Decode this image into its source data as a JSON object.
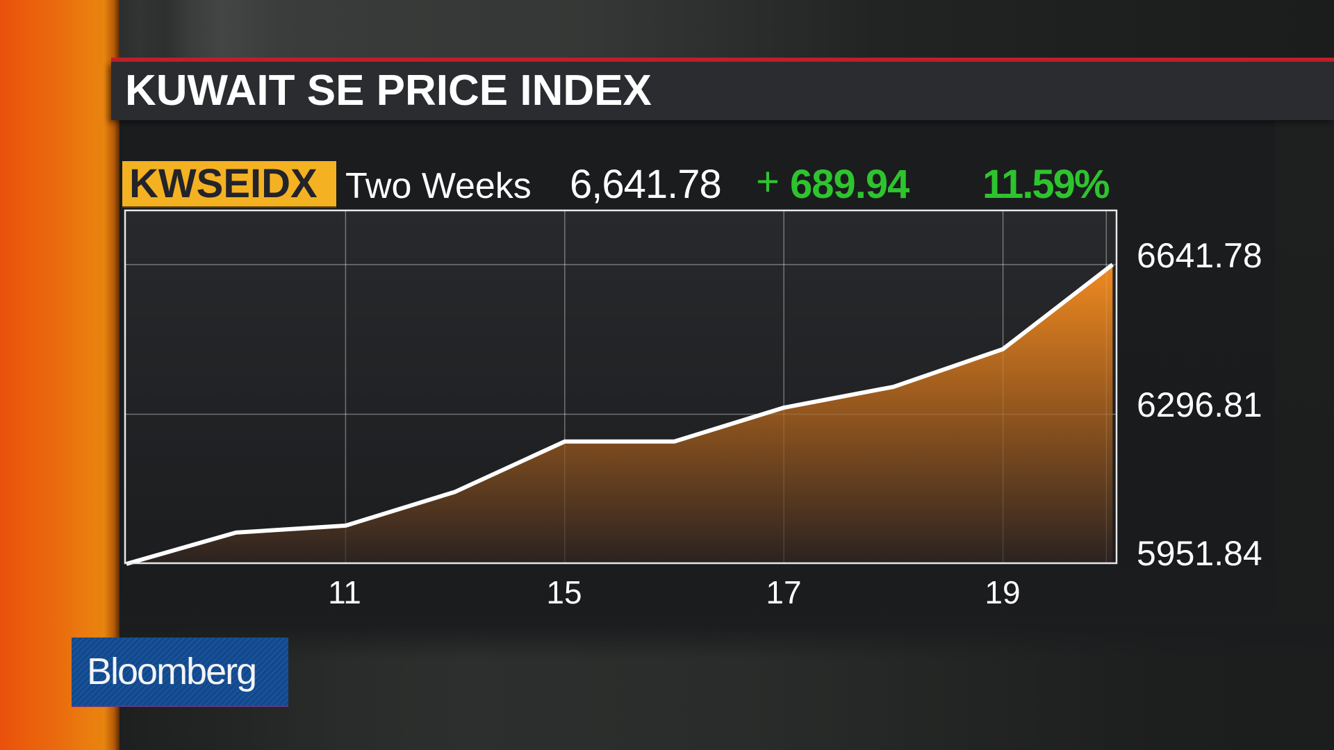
{
  "title": "KUWAIT SE PRICE INDEX",
  "ticker": "KWSEIDX",
  "period": "Two Weeks",
  "last_price": "6,641.78",
  "change_sign": "+",
  "change_value": "689.94",
  "change_pct": "11.59%",
  "brand": "Bloomberg",
  "colors": {
    "accent_orange": "#e9780f",
    "ticker_badge": "#f4b223",
    "positive_green": "#2ec42e",
    "title_red_line": "#c2202b",
    "brand_blue": "#10498f",
    "line_white": "#ffffff"
  },
  "y_axis_labels": [
    "6641.78",
    "6296.81",
    "5951.84"
  ],
  "x_axis_labels": [
    "11",
    "15",
    "17",
    "19"
  ],
  "chart_data": {
    "type": "area",
    "title": "KUWAIT SE PRICE INDEX",
    "subtitle": "KWSEIDX Two Weeks",
    "series": [
      {
        "name": "KWSEIDX",
        "x": [
          0,
          1,
          2,
          3,
          4,
          5,
          6,
          7,
          8,
          9
        ],
        "values": [
          5951.84,
          6024,
          6040,
          6118,
          6234,
          6234,
          6312,
          6360,
          6447,
          6641.78
        ]
      }
    ],
    "x_tick_positions": [
      2,
      4,
      6,
      8
    ],
    "x_tick_labels": [
      "11",
      "15",
      "17",
      "19"
    ],
    "xlabel": "",
    "ylabel": "",
    "ylim": [
      5951.84,
      6641.78
    ],
    "y_ticks": [
      5951.84,
      6296.81,
      6641.78
    ],
    "grid": true,
    "legend": "none",
    "axis_side": "right"
  }
}
